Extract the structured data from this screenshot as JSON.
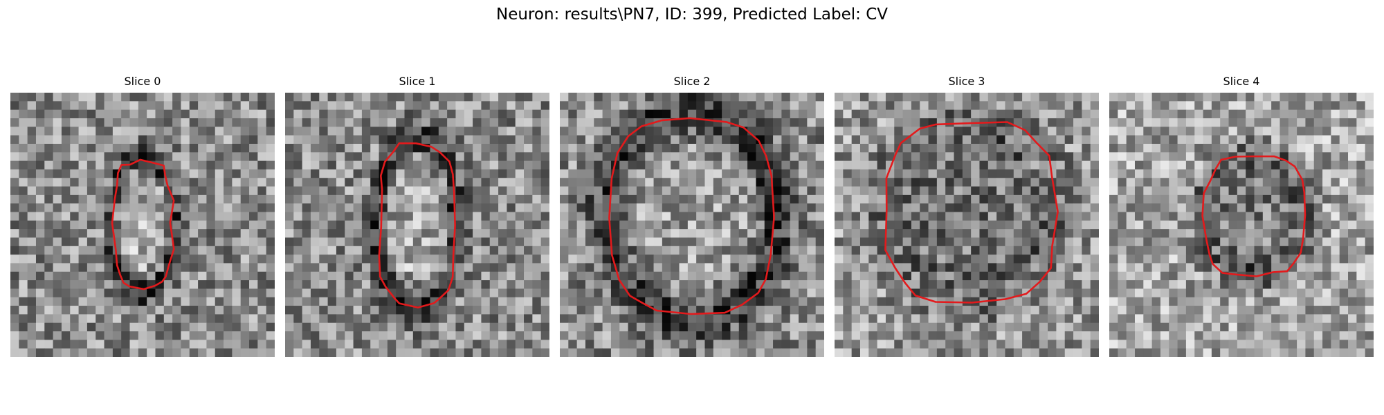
{
  "figure": {
    "title": "Neuron: results\\PN7, ID: 399, Predicted Label: CV",
    "outline_color": "#e31a1c",
    "colormap": "gray"
  },
  "slices": [
    {
      "title": "Slice 0"
    },
    {
      "title": "Slice 1"
    },
    {
      "title": "Slice 2"
    },
    {
      "title": "Slice 3"
    },
    {
      "title": "Slice 4"
    }
  ]
}
